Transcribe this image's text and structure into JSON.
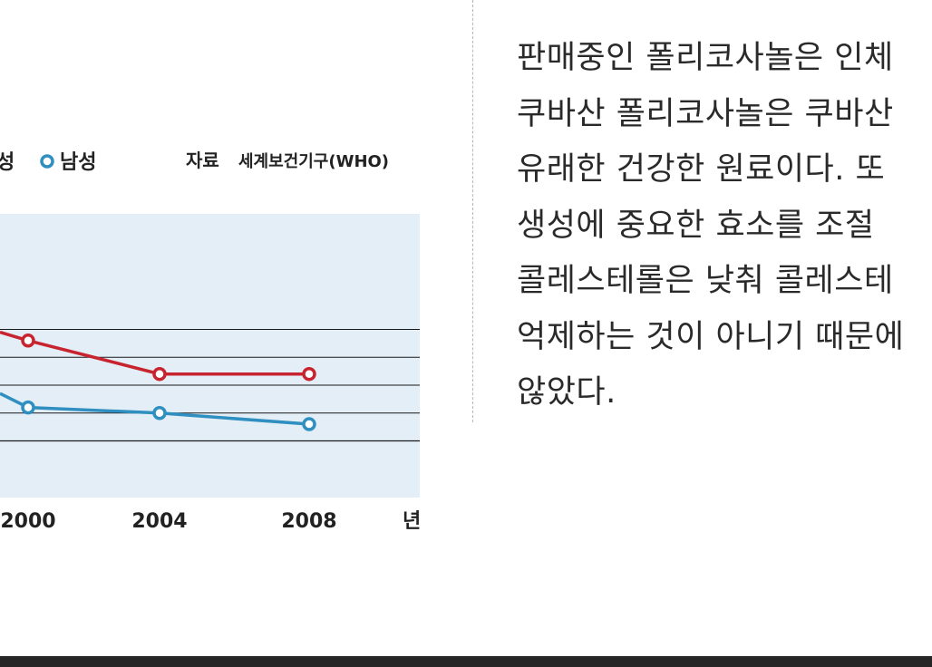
{
  "chart": {
    "legend": [
      {
        "label": "성",
        "color": "#c8242f"
      },
      {
        "label": "남성",
        "color": "#2f8fc0"
      }
    ],
    "source": {
      "label": "자료",
      "text": "세계보건기구(WHO)"
    },
    "x_unit": "년",
    "colors": {
      "panel": "#e3eef7",
      "gridline": "#1a1a1a",
      "female": "#c8242f",
      "male": "#2f8fc0"
    }
  },
  "chart_data": {
    "type": "line",
    "x": [
      "2000",
      "2004",
      "2008"
    ],
    "series": [
      {
        "name": "성",
        "values": [
          4.8,
          4.2,
          4.2
        ]
      },
      {
        "name": "남성",
        "values": [
          3.6,
          3.5,
          3.3
        ]
      }
    ],
    "grid": true
  },
  "article": {
    "lines": [
      "판매중인 폴리코사놀은 인체",
      "쿠바산 폴리코사놀은 쿠바산",
      "유래한 건강한 원료이다. 또",
      "생성에  중요한  효소를  조절",
      "콜레스테롤은 낮춰 콜레스테",
      "억제하는 것이 아니기 때문에",
      "않았다."
    ]
  }
}
